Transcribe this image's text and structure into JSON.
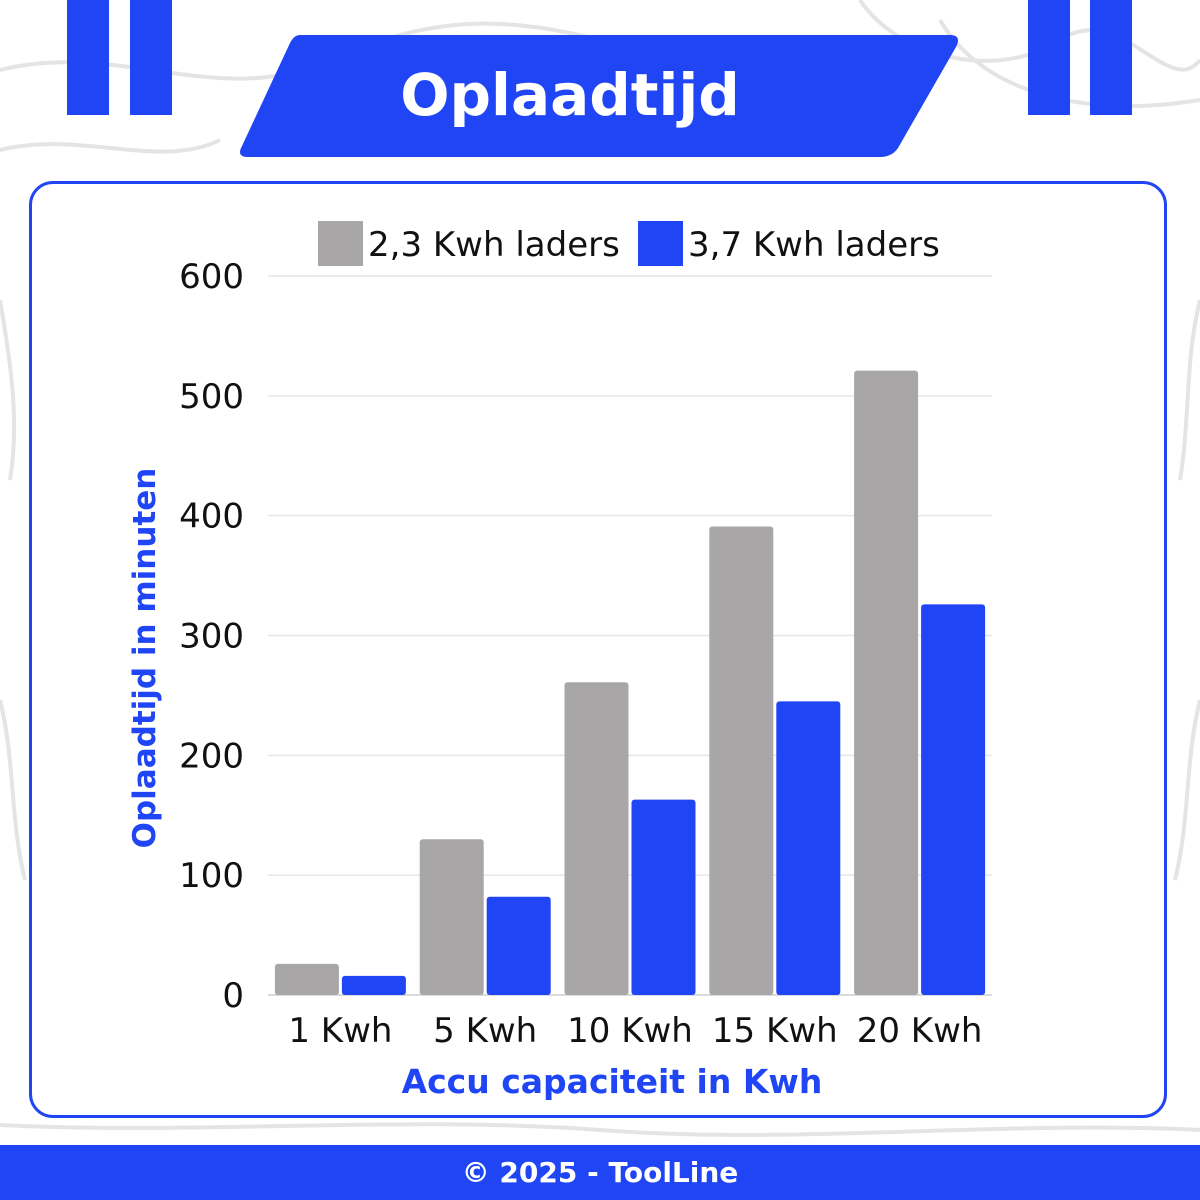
{
  "header": {
    "title": "Oplaadtijd"
  },
  "footer": {
    "text": "© 2025 - ToolLine"
  },
  "colors": {
    "accent": "#1f45f5",
    "gray_series": "#a8a6a6",
    "blue_series": "#1f45f5"
  },
  "chart_data": {
    "type": "bar",
    "title": "Oplaadtijd",
    "xlabel": "Accu capaciteit in Kwh",
    "ylabel": "Oplaadtijd in minuten",
    "categories": [
      "1 Kwh",
      "5 Kwh",
      "10 Kwh",
      "15 Kwh",
      "20 Kwh"
    ],
    "series": [
      {
        "name": "2,3 Kwh laders",
        "color": "#a8a6a6",
        "values": [
          26,
          130,
          261,
          391,
          521
        ]
      },
      {
        "name": "3,7 Kwh laders",
        "color": "#1f45f5",
        "values": [
          16,
          82,
          163,
          245,
          326
        ]
      }
    ],
    "ylim": [
      0,
      600
    ],
    "yticks": [
      "0",
      "100",
      "200",
      "300",
      "400",
      "500",
      "600"
    ],
    "grid": true,
    "legend": "top"
  }
}
